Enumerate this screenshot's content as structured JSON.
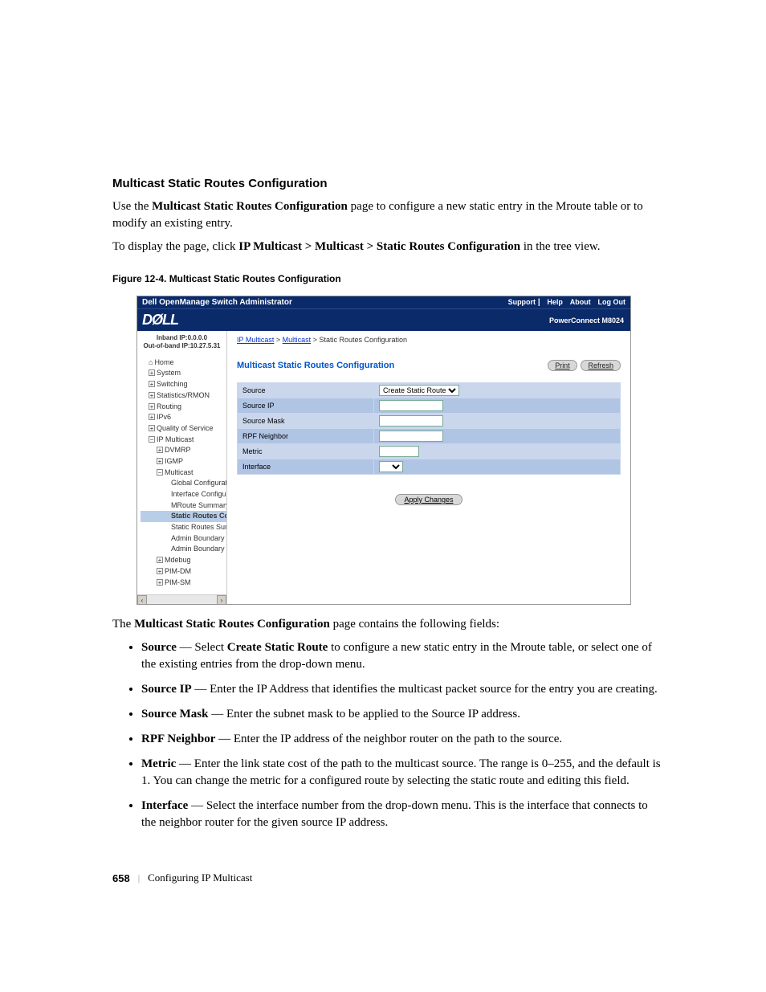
{
  "heading": "Multicast Static Routes Configuration",
  "intro1_pre": "Use the ",
  "intro1_bold": "Multicast Static Routes Configuration",
  "intro1_post": " page to configure a new static entry in the Mroute table or to modify an existing entry.",
  "intro2_pre": "To display the page, click ",
  "intro2_bold": "IP Multicast > Multicast > Static Routes Configuration",
  "intro2_post": " in the tree view.",
  "figure_caption": "Figure 12-4.    Multicast Static Routes Configuration",
  "admin": {
    "titlebar": "Dell OpenManage Switch Administrator",
    "nav": {
      "support": "Support",
      "help": "Help",
      "about": "About",
      "logout": "Log Out"
    },
    "logo": "DØLL",
    "product": "PowerConnect M8024",
    "ip1": "Inband IP:0.0.0.0",
    "ip2": "Out-of-band IP:10.27.5.31",
    "tree": {
      "home": "Home",
      "system": "System",
      "switching": "Switching",
      "stats": "Statistics/RMON",
      "routing": "Routing",
      "ipv6": "IPv6",
      "qos": "Quality of Service",
      "ipmc": "IP Multicast",
      "dvmrp": "DVMRP",
      "igmp": "IGMP",
      "multicast": "Multicast",
      "global": "Global Configuration",
      "iface": "Interface Configuration",
      "mroute": "MRoute Summary",
      "sr_config": "Static Routes Config",
      "sr_summary": "Static Routes Summa",
      "ab_config": "Admin Boundary Con",
      "ab_summary": "Admin Boundary Sum",
      "mdebug": "Mdebug",
      "pimdm": "PIM-DM",
      "pimsm": "PIM-SM"
    },
    "breadcrumb": {
      "a1": "IP Multicast",
      "a2": "Multicast",
      "current": "Static Routes Configuration"
    },
    "content_title": "Multicast Static Routes Configuration",
    "buttons": {
      "print": "Print",
      "refresh": "Refresh",
      "apply": "Apply Changes"
    },
    "form": {
      "rows": [
        {
          "label": "Source",
          "type": "select",
          "value": "Create Static Route"
        },
        {
          "label": "Source IP",
          "type": "input"
        },
        {
          "label": "Source Mask",
          "type": "input"
        },
        {
          "label": "RPF Neighbor",
          "type": "input"
        },
        {
          "label": "Metric",
          "type": "input_narrow"
        },
        {
          "label": "Interface",
          "type": "select_empty"
        }
      ]
    }
  },
  "after_figure_pre": "The ",
  "after_figure_bold": "Multicast Static Routes Configuration",
  "after_figure_post": " page contains the following fields:",
  "fields": [
    {
      "name": "Source",
      "desc": " — Select Create Static Route to configure a new static entry in the Mroute table, or select one of the existing entries from the drop-down menu.",
      "bold_in_desc": "Create Static Route"
    },
    {
      "name": "Source IP",
      "desc": " — Enter the IP Address that identifies the multicast packet source for the entry you are creating."
    },
    {
      "name": "Source Mask",
      "desc": " — Enter the subnet mask to be applied to the Source IP address."
    },
    {
      "name": "RPF Neighbor",
      "desc": " — Enter the IP address of the neighbor router on the path to the source."
    },
    {
      "name": "Metric",
      "desc": " — Enter the link state cost of the path to the multicast source. The range is 0–255, and the default is 1. You can change the metric for a configured route by selecting the static route and editing this field."
    },
    {
      "name": "Interface",
      "desc": " — Select the interface number from the drop-down menu. This is the interface that connects to the neighbor router for the given source IP address."
    }
  ],
  "footer": {
    "page": "658",
    "chapter": "Configuring IP Multicast"
  }
}
